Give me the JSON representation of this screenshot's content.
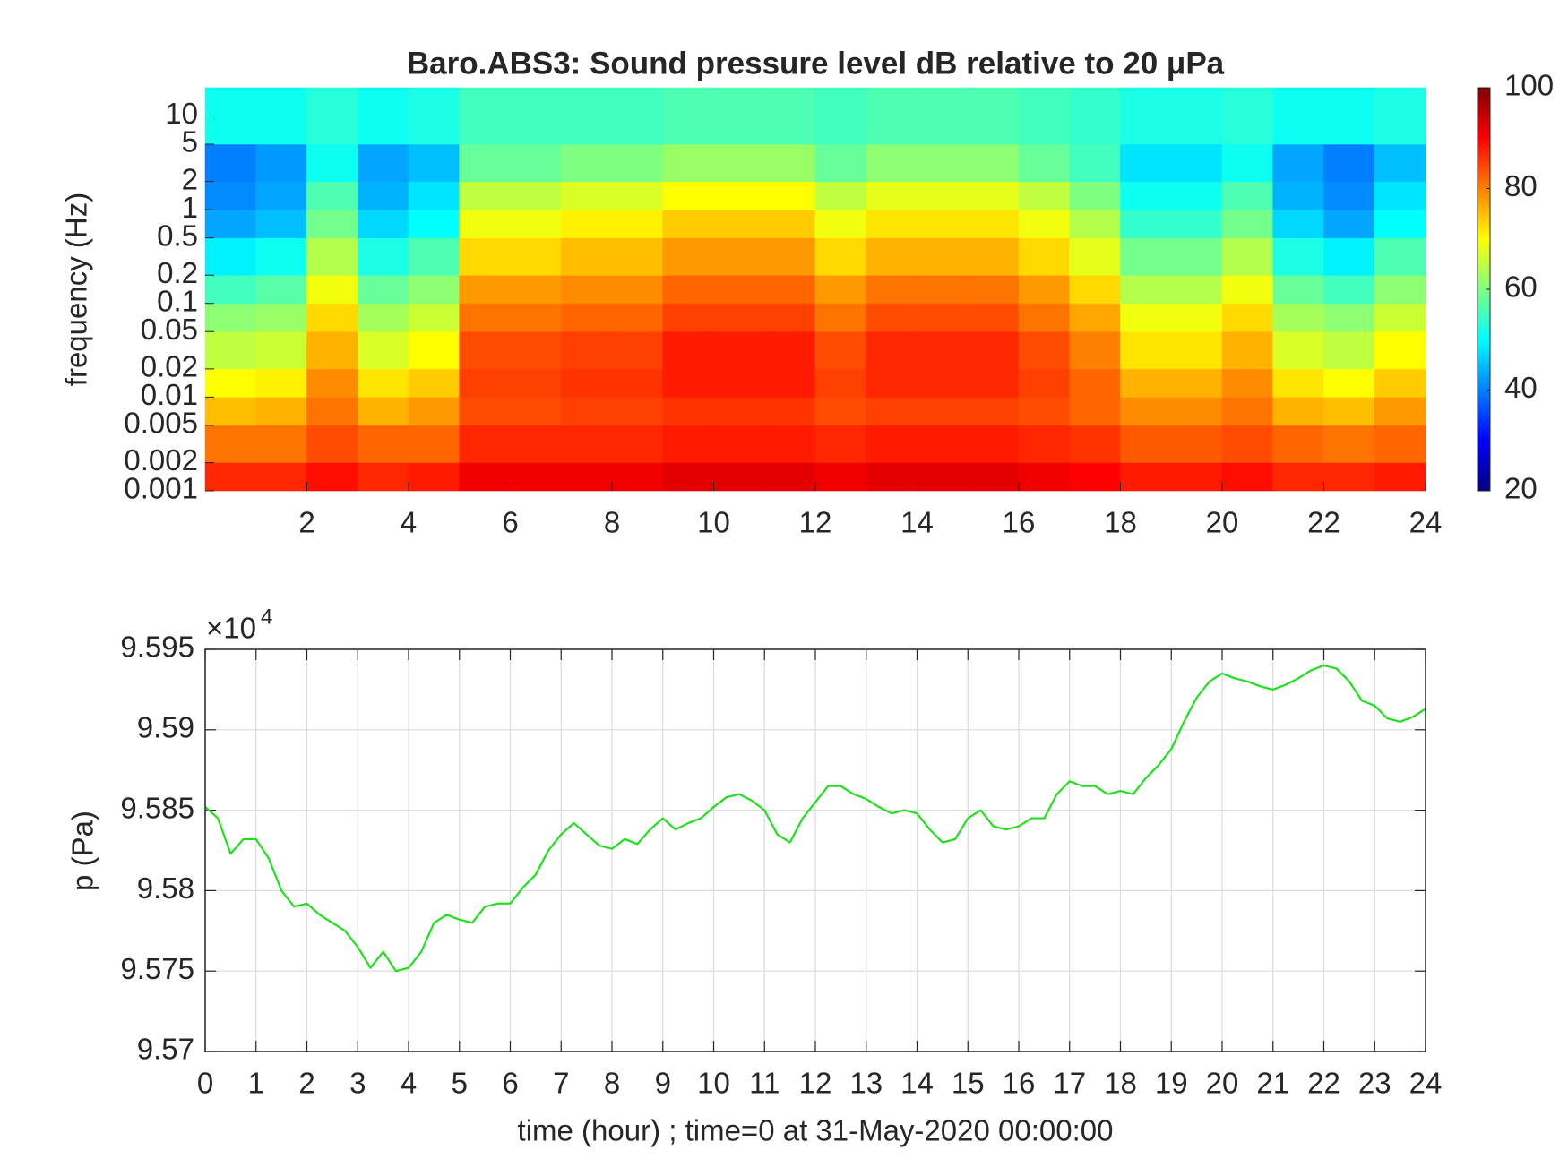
{
  "chart_data": [
    {
      "type": "heatmap",
      "title": "Baro.ABS3: Sound pressure level dB relative to 20 μPa",
      "ylabel": "frequency (Hz)",
      "colormap": "jet",
      "log_y": true,
      "xlim": [
        0,
        24
      ],
      "xticks": [
        2,
        4,
        6,
        8,
        10,
        12,
        14,
        16,
        18,
        20,
        22,
        24
      ],
      "ylim": [
        0.001,
        20
      ],
      "yticks": [
        0.001,
        0.002,
        0.005,
        0.01,
        0.02,
        0.05,
        0.1,
        0.2,
        0.5,
        1,
        2,
        5,
        10
      ],
      "x_bins": [
        0,
        1,
        2,
        3,
        4,
        5,
        6,
        7,
        8,
        9,
        10,
        11,
        12,
        13,
        14,
        15,
        16,
        17,
        18,
        19,
        20,
        21,
        22,
        23,
        24
      ],
      "y_bins": [
        0.001,
        0.002,
        0.005,
        0.01,
        0.02,
        0.05,
        0.1,
        0.2,
        0.5,
        1,
        2,
        5,
        20
      ],
      "values": [
        [
          87,
          87,
          89,
          87,
          88,
          91,
          91,
          91,
          91,
          92,
          92,
          92,
          91,
          92,
          92,
          92,
          91,
          90,
          88,
          88,
          89,
          87,
          87,
          88
        ],
        [
          81,
          81,
          84,
          82,
          82,
          87,
          87,
          87,
          87,
          88,
          88,
          88,
          87,
          88,
          88,
          88,
          87,
          86,
          83,
          83,
          84,
          82,
          81,
          82
        ],
        [
          75,
          76,
          81,
          76,
          78,
          84,
          84,
          85,
          85,
          86,
          86,
          86,
          84,
          85,
          85,
          85,
          84,
          82,
          79,
          79,
          81,
          76,
          75,
          78
        ],
        [
          70,
          71,
          79,
          72,
          74,
          85,
          85,
          86,
          86,
          88,
          88,
          88,
          85,
          87,
          87,
          87,
          85,
          82,
          76,
          76,
          79,
          72,
          70,
          74
        ],
        [
          65,
          66,
          76,
          67,
          70,
          84,
          84,
          85,
          85,
          88,
          88,
          88,
          84,
          87,
          87,
          87,
          84,
          80,
          72,
          72,
          76,
          67,
          65,
          70
        ],
        [
          61,
          62,
          73,
          63,
          66,
          81,
          81,
          82,
          82,
          85,
          85,
          85,
          81,
          84,
          84,
          84,
          81,
          77,
          69,
          69,
          73,
          63,
          61,
          66
        ],
        [
          55,
          57,
          69,
          58,
          61,
          78,
          78,
          79,
          79,
          82,
          82,
          82,
          78,
          81,
          81,
          81,
          78,
          73,
          64,
          64,
          69,
          58,
          55,
          61
        ],
        [
          49,
          51,
          64,
          52,
          56,
          73,
          73,
          75,
          75,
          78,
          78,
          78,
          73,
          76,
          76,
          76,
          73,
          68,
          59,
          59,
          64,
          52,
          49,
          56
        ],
        [
          43,
          45,
          59,
          47,
          50,
          69,
          69,
          71,
          71,
          74,
          74,
          74,
          69,
          72,
          72,
          72,
          69,
          64,
          54,
          54,
          59,
          47,
          43,
          50
        ],
        [
          41,
          43,
          56,
          44,
          48,
          65,
          65,
          67,
          67,
          70,
          70,
          70,
          65,
          68,
          68,
          68,
          65,
          60,
          51,
          51,
          56,
          44,
          41,
          48
        ],
        [
          40,
          42,
          51,
          43,
          45,
          58,
          58,
          60,
          60,
          62,
          62,
          62,
          58,
          61,
          61,
          61,
          58,
          55,
          48,
          48,
          51,
          43,
          40,
          45
        ],
        [
          51,
          51,
          53,
          51,
          52,
          55,
          55,
          55,
          55,
          56,
          56,
          56,
          55,
          56,
          56,
          56,
          55,
          54,
          52,
          52,
          53,
          51,
          51,
          52
        ]
      ],
      "clim": [
        20,
        100
      ],
      "cticks": [
        20,
        40,
        60,
        80,
        100
      ]
    },
    {
      "type": "line",
      "xlabel": "time (hour) ; time=0 at 31-May-2020 00:00:00",
      "ylabel": "p (Pa)",
      "y_multiplier": {
        "base": "×10",
        "exponent": "4"
      },
      "color": "#1ee01e",
      "grid": true,
      "xlim": [
        0,
        24
      ],
      "xticks": [
        0,
        1,
        2,
        3,
        4,
        5,
        6,
        7,
        8,
        9,
        10,
        11,
        12,
        13,
        14,
        15,
        16,
        17,
        18,
        19,
        20,
        21,
        22,
        23,
        24
      ],
      "ylim": [
        95700,
        95950
      ],
      "yticks": [
        {
          "value": 95700,
          "label": "9.57"
        },
        {
          "value": 95750,
          "label": "9.575"
        },
        {
          "value": 95800,
          "label": "9.58"
        },
        {
          "value": 95850,
          "label": "9.585"
        },
        {
          "value": 95900,
          "label": "9.59"
        },
        {
          "value": 95950,
          "label": "9.595"
        }
      ],
      "x": [
        0,
        0.25,
        0.5,
        0.75,
        1,
        1.25,
        1.5,
        1.75,
        2,
        2.25,
        2.5,
        2.75,
        3,
        3.25,
        3.5,
        3.75,
        4,
        4.25,
        4.5,
        4.75,
        5,
        5.25,
        5.5,
        5.75,
        6,
        6.25,
        6.5,
        6.75,
        7,
        7.25,
        7.5,
        7.75,
        8,
        8.25,
        8.5,
        8.75,
        9,
        9.25,
        9.5,
        9.75,
        10,
        10.25,
        10.5,
        10.75,
        11,
        11.25,
        11.5,
        11.75,
        12,
        12.25,
        12.5,
        12.75,
        13,
        13.25,
        13.5,
        13.75,
        14,
        14.25,
        14.5,
        14.75,
        15,
        15.25,
        15.5,
        15.75,
        16,
        16.25,
        16.5,
        16.75,
        17,
        17.25,
        17.5,
        17.75,
        18,
        18.25,
        18.5,
        18.75,
        19,
        19.25,
        19.5,
        19.75,
        20,
        20.25,
        20.5,
        20.75,
        21,
        21.25,
        21.5,
        21.75,
        22,
        22.25,
        22.5,
        22.75,
        23,
        23.25,
        23.5,
        23.75,
        24
      ],
      "values": [
        95852,
        95845,
        95823,
        95832,
        95832,
        95820,
        95800,
        95790,
        95792,
        95785,
        95780,
        95775,
        95765,
        95752,
        95762,
        95750,
        95752,
        95762,
        95780,
        95785,
        95782,
        95780,
        95790,
        95792,
        95792,
        95802,
        95810,
        95825,
        95835,
        95842,
        95835,
        95828,
        95826,
        95832,
        95829,
        95838,
        95845,
        95838,
        95842,
        95845,
        95852,
        95858,
        95860,
        95856,
        95850,
        95835,
        95830,
        95845,
        95855,
        95865,
        95865,
        95860,
        95857,
        95852,
        95848,
        95850,
        95848,
        95838,
        95830,
        95832,
        95845,
        95850,
        95840,
        95838,
        95840,
        95845,
        95845,
        95860,
        95868,
        95865,
        95865,
        95860,
        95862,
        95860,
        95870,
        95878,
        95888,
        95905,
        95920,
        95930,
        95935,
        95932,
        95930,
        95927,
        95925,
        95928,
        95932,
        95937,
        95940,
        95938,
        95930,
        95918,
        95915,
        95907,
        95905,
        95908,
        95913
      ]
    }
  ]
}
